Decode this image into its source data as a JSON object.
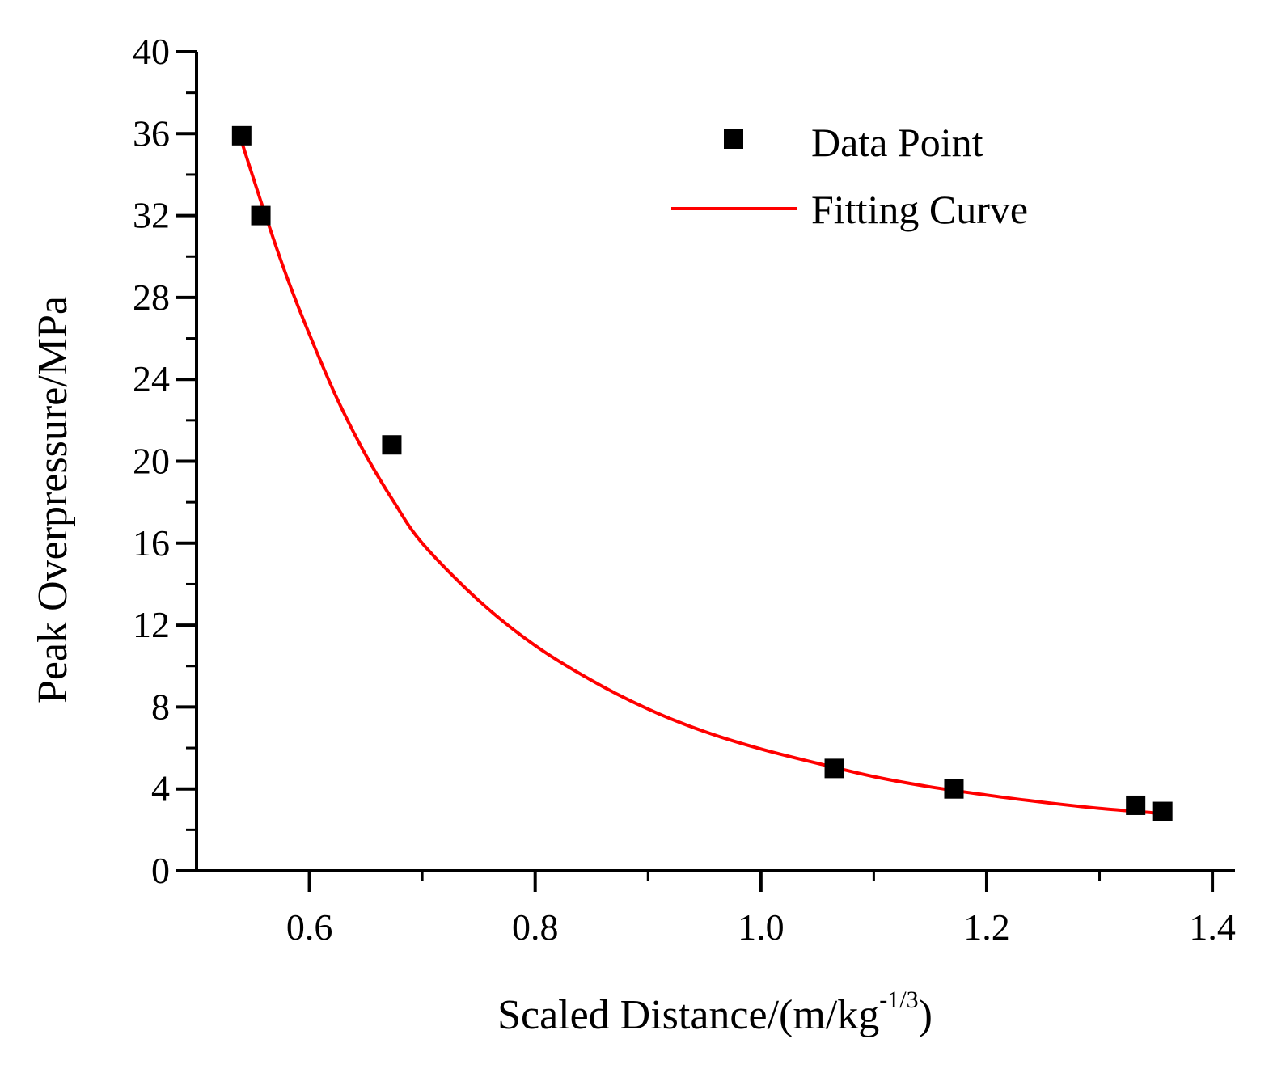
{
  "chart_data": {
    "type": "scatter",
    "title": "",
    "xlabel": "Scaled Distance/(m/kg",
    "xlabel_superscript": "-1/3",
    "xlabel_suffix": ")",
    "ylabel": "Peak Overpressure/MPa",
    "xlim": [
      0.5,
      1.42
    ],
    "ylim": [
      0,
      40
    ],
    "x_ticks": [
      "0.6",
      "0.8",
      "1.0",
      "1.2",
      "1.4"
    ],
    "y_ticks": [
      "0",
      "4",
      "8",
      "12",
      "16",
      "20",
      "24",
      "28",
      "32",
      "36",
      "40"
    ],
    "legend_position": "top-right",
    "grid": false,
    "series": [
      {
        "name": "Data Point",
        "kind": "marker",
        "color": "#000000",
        "points": [
          {
            "x": 0.54,
            "y": 35.9
          },
          {
            "x": 0.557,
            "y": 32.0
          },
          {
            "x": 0.673,
            "y": 20.8
          },
          {
            "x": 1.065,
            "y": 5.0
          },
          {
            "x": 1.171,
            "y": 4.0
          },
          {
            "x": 1.332,
            "y": 3.2
          },
          {
            "x": 1.356,
            "y": 2.9
          }
        ]
      },
      {
        "name": "Fitting Curve",
        "kind": "line",
        "color": "#ff0000",
        "points": [
          {
            "x": 0.54,
            "y": 35.6
          },
          {
            "x": 0.56,
            "y": 32.2
          },
          {
            "x": 0.58,
            "y": 29.0
          },
          {
            "x": 0.6,
            "y": 26.2
          },
          {
            "x": 0.625,
            "y": 23.0
          },
          {
            "x": 0.65,
            "y": 20.3
          },
          {
            "x": 0.675,
            "y": 18.0
          },
          {
            "x": 0.7,
            "y": 16.0
          },
          {
            "x": 0.75,
            "y": 13.2
          },
          {
            "x": 0.8,
            "y": 11.0
          },
          {
            "x": 0.85,
            "y": 9.3
          },
          {
            "x": 0.9,
            "y": 7.9
          },
          {
            "x": 0.95,
            "y": 6.8
          },
          {
            "x": 1.0,
            "y": 5.95
          },
          {
            "x": 1.05,
            "y": 5.25
          },
          {
            "x": 1.1,
            "y": 4.6
          },
          {
            "x": 1.15,
            "y": 4.1
          },
          {
            "x": 1.2,
            "y": 3.7
          },
          {
            "x": 1.25,
            "y": 3.35
          },
          {
            "x": 1.3,
            "y": 3.05
          },
          {
            "x": 1.356,
            "y": 2.8
          }
        ]
      }
    ]
  }
}
